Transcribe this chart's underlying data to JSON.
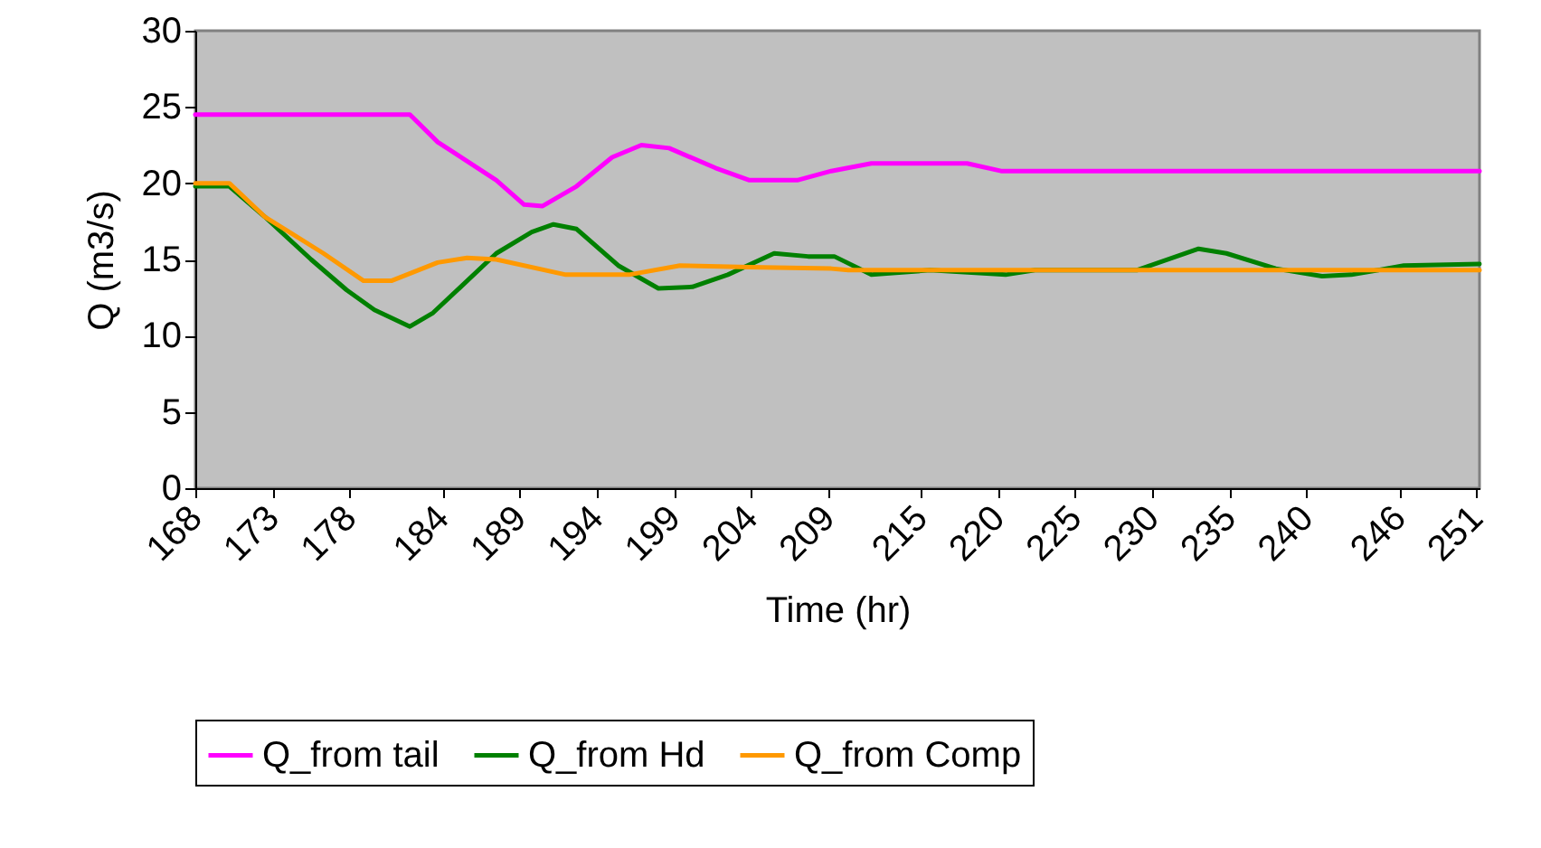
{
  "chart_data": {
    "type": "line",
    "xlabel": "Time (hr)",
    "ylabel": "Q (m3/s)",
    "legend": "bottom",
    "xlim": [
      168,
      251.2
    ],
    "ylim": [
      0,
      30
    ],
    "yticks": [
      0,
      5,
      10,
      15,
      20,
      25,
      30
    ],
    "xticks": [
      168,
      173,
      178,
      184,
      189,
      194,
      199,
      204,
      209,
      215,
      220,
      225,
      230,
      235,
      240,
      246,
      251
    ],
    "series": [
      {
        "name": "Q_from tail",
        "color": "#ff00ff",
        "x": [
          168,
          181.9,
          183.7,
          187.5,
          189.3,
          190.5,
          192.7,
          195,
          196.9,
          198.7,
          201.7,
          203.9,
          207,
          209.2,
          211.8,
          218,
          220.2,
          251.2
        ],
        "values": [
          24.5,
          24.5,
          22.7,
          20.2,
          18.6,
          18.5,
          19.8,
          21.7,
          22.5,
          22.3,
          21.0,
          20.2,
          20.2,
          20.8,
          21.3,
          21.3,
          20.8,
          20.8
        ]
      },
      {
        "name": "Q_from Hd",
        "color": "#008000",
        "x": [
          168,
          170.2,
          172.5,
          175.5,
          177.8,
          179.6,
          181.9,
          183.4,
          185.3,
          187.5,
          189.8,
          191.2,
          192.7,
          195.4,
          198,
          200.2,
          202.5,
          205.5,
          207.7,
          209.4,
          211.8,
          215.6,
          220.5,
          222.4,
          229,
          233,
          234.8,
          238,
          241,
          242.9,
          246.3,
          251.2
        ],
        "values": [
          19.8,
          19.8,
          17.8,
          15.0,
          13.0,
          11.7,
          10.6,
          11.5,
          13.3,
          15.4,
          16.8,
          17.3,
          17.0,
          14.6,
          13.1,
          13.2,
          14.0,
          15.4,
          15.2,
          15.2,
          14.0,
          14.3,
          14.0,
          14.3,
          14.3,
          15.7,
          15.4,
          14.4,
          13.9,
          14.0,
          14.6,
          14.7
        ]
      },
      {
        "name": "Q_from Comp",
        "color": "#ff9900",
        "x": [
          168,
          170.2,
          172.5,
          176.3,
          178.9,
          180.7,
          183.7,
          185.6,
          187.5,
          192,
          196.1,
          199.4,
          203.9,
          209.2,
          210.3,
          251.2
        ],
        "values": [
          20.0,
          20.0,
          17.8,
          15.4,
          13.6,
          13.6,
          14.8,
          15.1,
          15.0,
          14.0,
          14.0,
          14.6,
          14.5,
          14.4,
          14.3,
          14.3
        ]
      }
    ]
  }
}
